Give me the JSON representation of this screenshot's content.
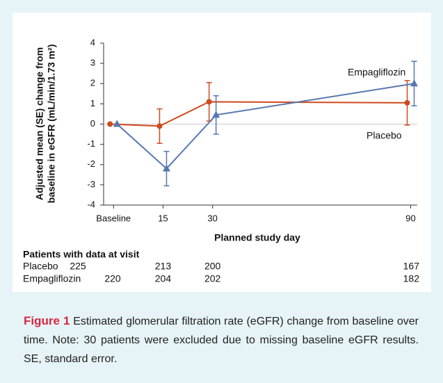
{
  "chart_data": {
    "type": "line",
    "x": [
      0,
      15,
      30,
      90
    ],
    "xlim": [
      -3,
      92
    ],
    "xticks": [
      {
        "value": 0,
        "label": "Baseline"
      },
      15,
      30,
      90
    ],
    "ylim": [
      -4,
      4
    ],
    "yticks": [
      -4,
      -3,
      -2,
      -1,
      0,
      1,
      2,
      3,
      4
    ],
    "xlabel": "Planned study day",
    "ylabel": [
      "Adjusted mean (SE) change from",
      "baseline in eGFR (mL/min/1.73 m²)"
    ],
    "series": [
      {
        "name": "Placebo",
        "color": "#cf4a1d",
        "marker": "circle",
        "values": [
          0,
          -0.1,
          1.1,
          1.05
        ],
        "errors": [
          null,
          0.85,
          0.95,
          1.1
        ]
      },
      {
        "name": "Empagliflozin",
        "color": "#5677b0",
        "marker": "triangle",
        "values": [
          0,
          -2.2,
          0.45,
          2.0
        ],
        "errors": [
          null,
          0.85,
          0.95,
          1.1
        ]
      }
    ]
  },
  "table": {
    "title": "Patients with data at visit",
    "rows": [
      [
        "Placebo",
        225,
        213,
        200,
        167
      ],
      [
        "Empagliflozin",
        220,
        204,
        202,
        182
      ]
    ]
  },
  "caption": {
    "label": "Figure 1",
    "text": "Estimated glomerular filtration rate (eGFR) change from baseline over time. Note: 30 patients were excluded due to missing baseline eGFR results. SE, standard error."
  }
}
